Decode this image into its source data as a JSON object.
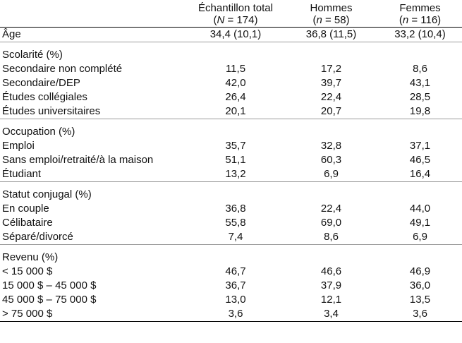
{
  "columns": [
    {
      "label": "Échantillon total",
      "n_symbol": "N",
      "n_value": " = 174)"
    },
    {
      "label": "Hommes",
      "n_symbol": "n",
      "n_value": " = 58)"
    },
    {
      "label": "Femmes",
      "n_symbol": "n",
      "n_value": " = 116)"
    }
  ],
  "age": {
    "label": "Âge",
    "values": [
      "34,4 (10,1)",
      "36,8 (11,5)",
      "33,2 (10,4)"
    ]
  },
  "sections": [
    {
      "title": "Scolarité (%)",
      "rows": [
        {
          "label": "Secondaire non complété",
          "values": [
            "11,5",
            "17,2",
            "8,6"
          ]
        },
        {
          "label": "Secondaire/DEP",
          "values": [
            "42,0",
            "39,7",
            "43,1"
          ]
        },
        {
          "label": "Études collégiales",
          "values": [
            "26,4",
            "22,4",
            "28,5"
          ]
        },
        {
          "label": "Études universitaires",
          "values": [
            "20,1",
            "20,7",
            "19,8"
          ]
        }
      ]
    },
    {
      "title": "Occupation (%)",
      "rows": [
        {
          "label": "Emploi",
          "values": [
            "35,7",
            "32,8",
            "37,1"
          ]
        },
        {
          "label": "Sans emploi/retraité/à la maison",
          "values": [
            "51,1",
            "60,3",
            "46,5"
          ]
        },
        {
          "label": "Étudiant",
          "values": [
            "13,2",
            "6,9",
            "16,4"
          ]
        }
      ]
    },
    {
      "title": "Statut conjugal (%)",
      "rows": [
        {
          "label": "En couple",
          "values": [
            "36,8",
            "22,4",
            "44,0"
          ]
        },
        {
          "label": "Célibataire",
          "values": [
            "55,8",
            "69,0",
            "49,1"
          ]
        },
        {
          "label": "Séparé/divorcé",
          "values": [
            "7,4",
            "8,6",
            "6,9"
          ]
        }
      ]
    },
    {
      "title": "Revenu (%)",
      "rows": [
        {
          "label": "< 15 000 $",
          "values": [
            "46,7",
            "46,6",
            "46,9"
          ]
        },
        {
          "label": "15 000 $ – 45 000 $",
          "values": [
            "36,7",
            "37,9",
            "36,0"
          ]
        },
        {
          "label": "45 000 $ – 75 000 $",
          "values": [
            "13,0",
            "12,1",
            "13,5"
          ]
        },
        {
          "label": "> 75 000 $",
          "values": [
            "3,6",
            "3,4",
            "3,6"
          ]
        }
      ]
    }
  ]
}
